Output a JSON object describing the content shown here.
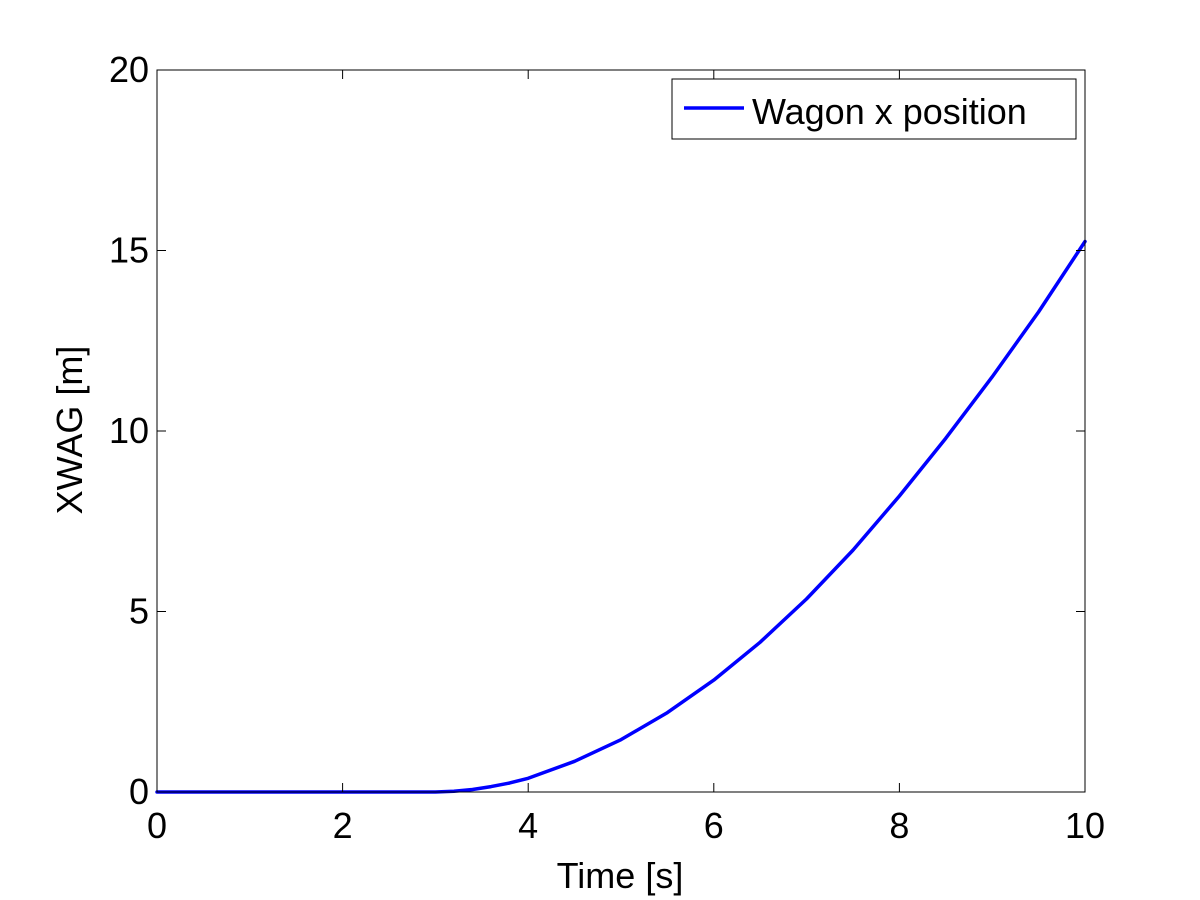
{
  "chart_data": {
    "type": "line",
    "title": "",
    "xlabel": "Time [s]",
    "ylabel": "XWAG [m]",
    "xlim": [
      0,
      10
    ],
    "ylim": [
      0,
      20
    ],
    "xticks": [
      "0",
      "2",
      "4",
      "6",
      "8",
      "10"
    ],
    "yticks": [
      "0",
      "5",
      "10",
      "15",
      "20"
    ],
    "grid": false,
    "legend_position": "top-right",
    "series": [
      {
        "name": "Wagon x position",
        "color": "#0000ff",
        "x": [
          0,
          1,
          2,
          3,
          3.2,
          3.4,
          3.6,
          3.8,
          4,
          4.5,
          5,
          5.5,
          6,
          6.5,
          7,
          7.5,
          8,
          8.5,
          9,
          9.5,
          10
        ],
        "y": [
          0,
          0,
          0,
          0,
          0.02,
          0.07,
          0.15,
          0.25,
          0.38,
          0.85,
          1.45,
          2.2,
          3.1,
          4.15,
          5.35,
          6.7,
          8.2,
          9.8,
          11.5,
          13.3,
          15.25
        ]
      }
    ]
  }
}
